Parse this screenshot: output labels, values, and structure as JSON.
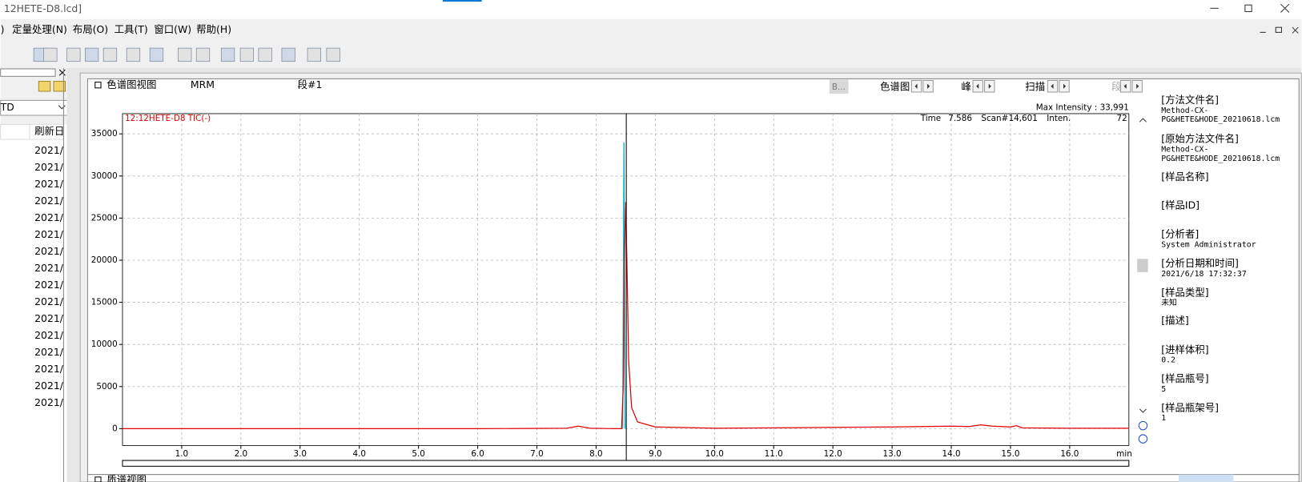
{
  "window": {
    "title": "12HETE-D8.lcd]"
  },
  "menu": [
    ")",
    "定量处理(N)",
    "布局(O)",
    "工具(T)",
    "窗口(W)",
    "帮助(H)"
  ],
  "left_panel": {
    "combo": "TD",
    "column": "刷新日",
    "rows": [
      "2021/",
      "2021/",
      "2021/",
      "2021/",
      "2021/",
      "2021/",
      "2021/",
      "2021/",
      "2021/",
      "2021/",
      "2021/",
      "2021/",
      "2021/",
      "2021/",
      "2021/",
      "2021/"
    ]
  },
  "chart_view": {
    "title": "色谱图视图",
    "mode": "MRM",
    "segment": "段#1",
    "button": "B...",
    "nav": [
      "色谱图",
      "峰",
      "扫描",
      "段"
    ]
  },
  "chart_data": {
    "type": "line",
    "trace_label": "12:12HETE-D8 TIC(-)",
    "max_intensity": "Max Intensity : 33,991",
    "readout": {
      "time_label": "Time",
      "time": "7.586",
      "scan_label": "Scan#",
      "scan": "14,601",
      "inten_label": "Inten.",
      "inten": "72"
    },
    "x_unit": "min",
    "xlim": [
      0,
      17
    ],
    "ylim": [
      -2000,
      37400
    ],
    "xticks": [
      {
        "value": 1,
        "label": "1.0"
      },
      {
        "value": 2,
        "label": "2.0"
      },
      {
        "value": 3,
        "label": "3.0"
      },
      {
        "value": 4,
        "label": "4.0"
      },
      {
        "value": 5,
        "label": "5.0"
      },
      {
        "value": 6,
        "label": "6.0"
      },
      {
        "value": 7,
        "label": "7.0"
      },
      {
        "value": 8,
        "label": "8.0"
      },
      {
        "value": 9,
        "label": "9.0"
      },
      {
        "value": 10,
        "label": "10.0"
      },
      {
        "value": 11,
        "label": "11.0"
      },
      {
        "value": 12,
        "label": "12.0"
      },
      {
        "value": 13,
        "label": "13.0"
      },
      {
        "value": 14,
        "label": "14.0"
      },
      {
        "value": 15,
        "label": "15.0"
      },
      {
        "value": 16,
        "label": "16.0"
      }
    ],
    "yticks": [
      0,
      5000,
      10000,
      15000,
      20000,
      25000,
      30000,
      35000
    ],
    "grid": true,
    "cursor_x": 8.51,
    "series": [
      {
        "color": "#e00000",
        "x": [
          0,
          2,
          4,
          6,
          7.5,
          7.7,
          7.9,
          8.3,
          8.43,
          8.46,
          8.48,
          8.5,
          8.52,
          8.55,
          8.6,
          8.7,
          9.0,
          10,
          11,
          12,
          13,
          13.5,
          14,
          14.3,
          14.5,
          14.7,
          15.0,
          15.1,
          15.2,
          16,
          17
        ],
        "values": [
          0,
          0,
          0,
          0,
          50,
          300,
          50,
          0,
          0,
          5000,
          20000,
          26900,
          20000,
          8000,
          2500,
          800,
          200,
          50,
          100,
          150,
          200,
          250,
          300,
          250,
          450,
          300,
          200,
          350,
          100,
          50,
          50
        ]
      },
      {
        "color": "#00b0c8",
        "x": [
          8.45,
          8.47,
          8.49
        ],
        "values": [
          0,
          33991,
          0
        ]
      }
    ]
  },
  "info_panel": [
    {
      "label": "[方法文件名]",
      "value": [
        "Method-CX-",
        "PG&HETE&HODE_20210618.lcm"
      ]
    },
    {
      "label": "[原始方法文件名]",
      "value": [
        "Method-CX-",
        "PG&HETE&HODE_20210618.lcm"
      ]
    },
    {
      "label": "[样品名称]"
    },
    {
      "label": "[样品ID]"
    },
    {
      "label": "[分析者]",
      "value": [
        "System Administrator"
      ]
    },
    {
      "label": "[分析日期和时间]",
      "value": [
        "2021/6/18 17:32:37"
      ]
    },
    {
      "label": "[样品类型]",
      "value": [
        "未知"
      ]
    },
    {
      "label": "[描述]"
    },
    {
      "label": "[进样体积]",
      "value": [
        "0.2"
      ]
    },
    {
      "label": "[样品瓶号]",
      "value": [
        "5"
      ]
    },
    {
      "label": "[样品瓶架号]",
      "value": [
        "1"
      ]
    }
  ],
  "bottom_panel": {
    "title": "质谱视图"
  }
}
